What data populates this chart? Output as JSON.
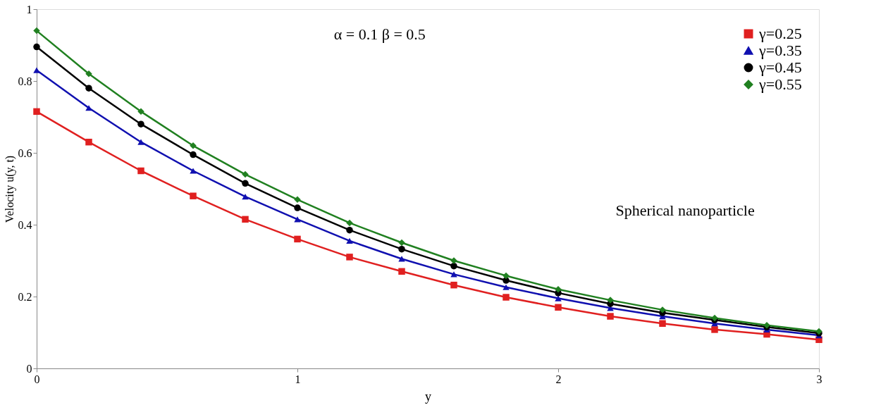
{
  "chart_data": {
    "type": "line",
    "xlabel": "y",
    "ylabel": "Velocity u(y, t)",
    "annotations": [
      "α = 0.1 β = 0.5",
      "Spherical nanoparticle"
    ],
    "x": [
      0,
      0.2,
      0.4,
      0.6,
      0.8,
      1.0,
      1.2,
      1.4,
      1.6,
      1.8,
      2.0,
      2.2,
      2.4,
      2.6,
      2.8,
      3.0
    ],
    "series": [
      {
        "name": "γ=0.25",
        "color": "#e02020",
        "marker": "square",
        "values": [
          0.715,
          0.63,
          0.55,
          0.48,
          0.415,
          0.36,
          0.31,
          0.27,
          0.232,
          0.198,
          0.17,
          0.145,
          0.125,
          0.108,
          0.095,
          0.08
        ]
      },
      {
        "name": "γ=0.35",
        "color": "#1010b0",
        "marker": "triangle",
        "values": [
          0.83,
          0.725,
          0.63,
          0.55,
          0.478,
          0.415,
          0.355,
          0.305,
          0.262,
          0.226,
          0.195,
          0.168,
          0.145,
          0.125,
          0.108,
          0.092
        ]
      },
      {
        "name": "γ=0.45",
        "color": "#000000",
        "marker": "circle",
        "values": [
          0.895,
          0.78,
          0.68,
          0.595,
          0.515,
          0.447,
          0.385,
          0.332,
          0.285,
          0.245,
          0.21,
          0.18,
          0.155,
          0.135,
          0.115,
          0.098
        ]
      },
      {
        "name": "γ=0.55",
        "color": "#208020",
        "marker": "diamond",
        "values": [
          0.94,
          0.82,
          0.715,
          0.62,
          0.54,
          0.47,
          0.405,
          0.35,
          0.3,
          0.258,
          0.22,
          0.19,
          0.163,
          0.14,
          0.12,
          0.103
        ]
      }
    ],
    "xlim": [
      0,
      3
    ],
    "xticks": [
      0,
      1,
      2,
      3
    ],
    "ylim": [
      0,
      1
    ],
    "yticks": [
      0,
      0.2,
      0.4,
      0.6,
      0.8,
      1
    ],
    "grid": false,
    "legend": "top right",
    "line_style": "solid"
  }
}
